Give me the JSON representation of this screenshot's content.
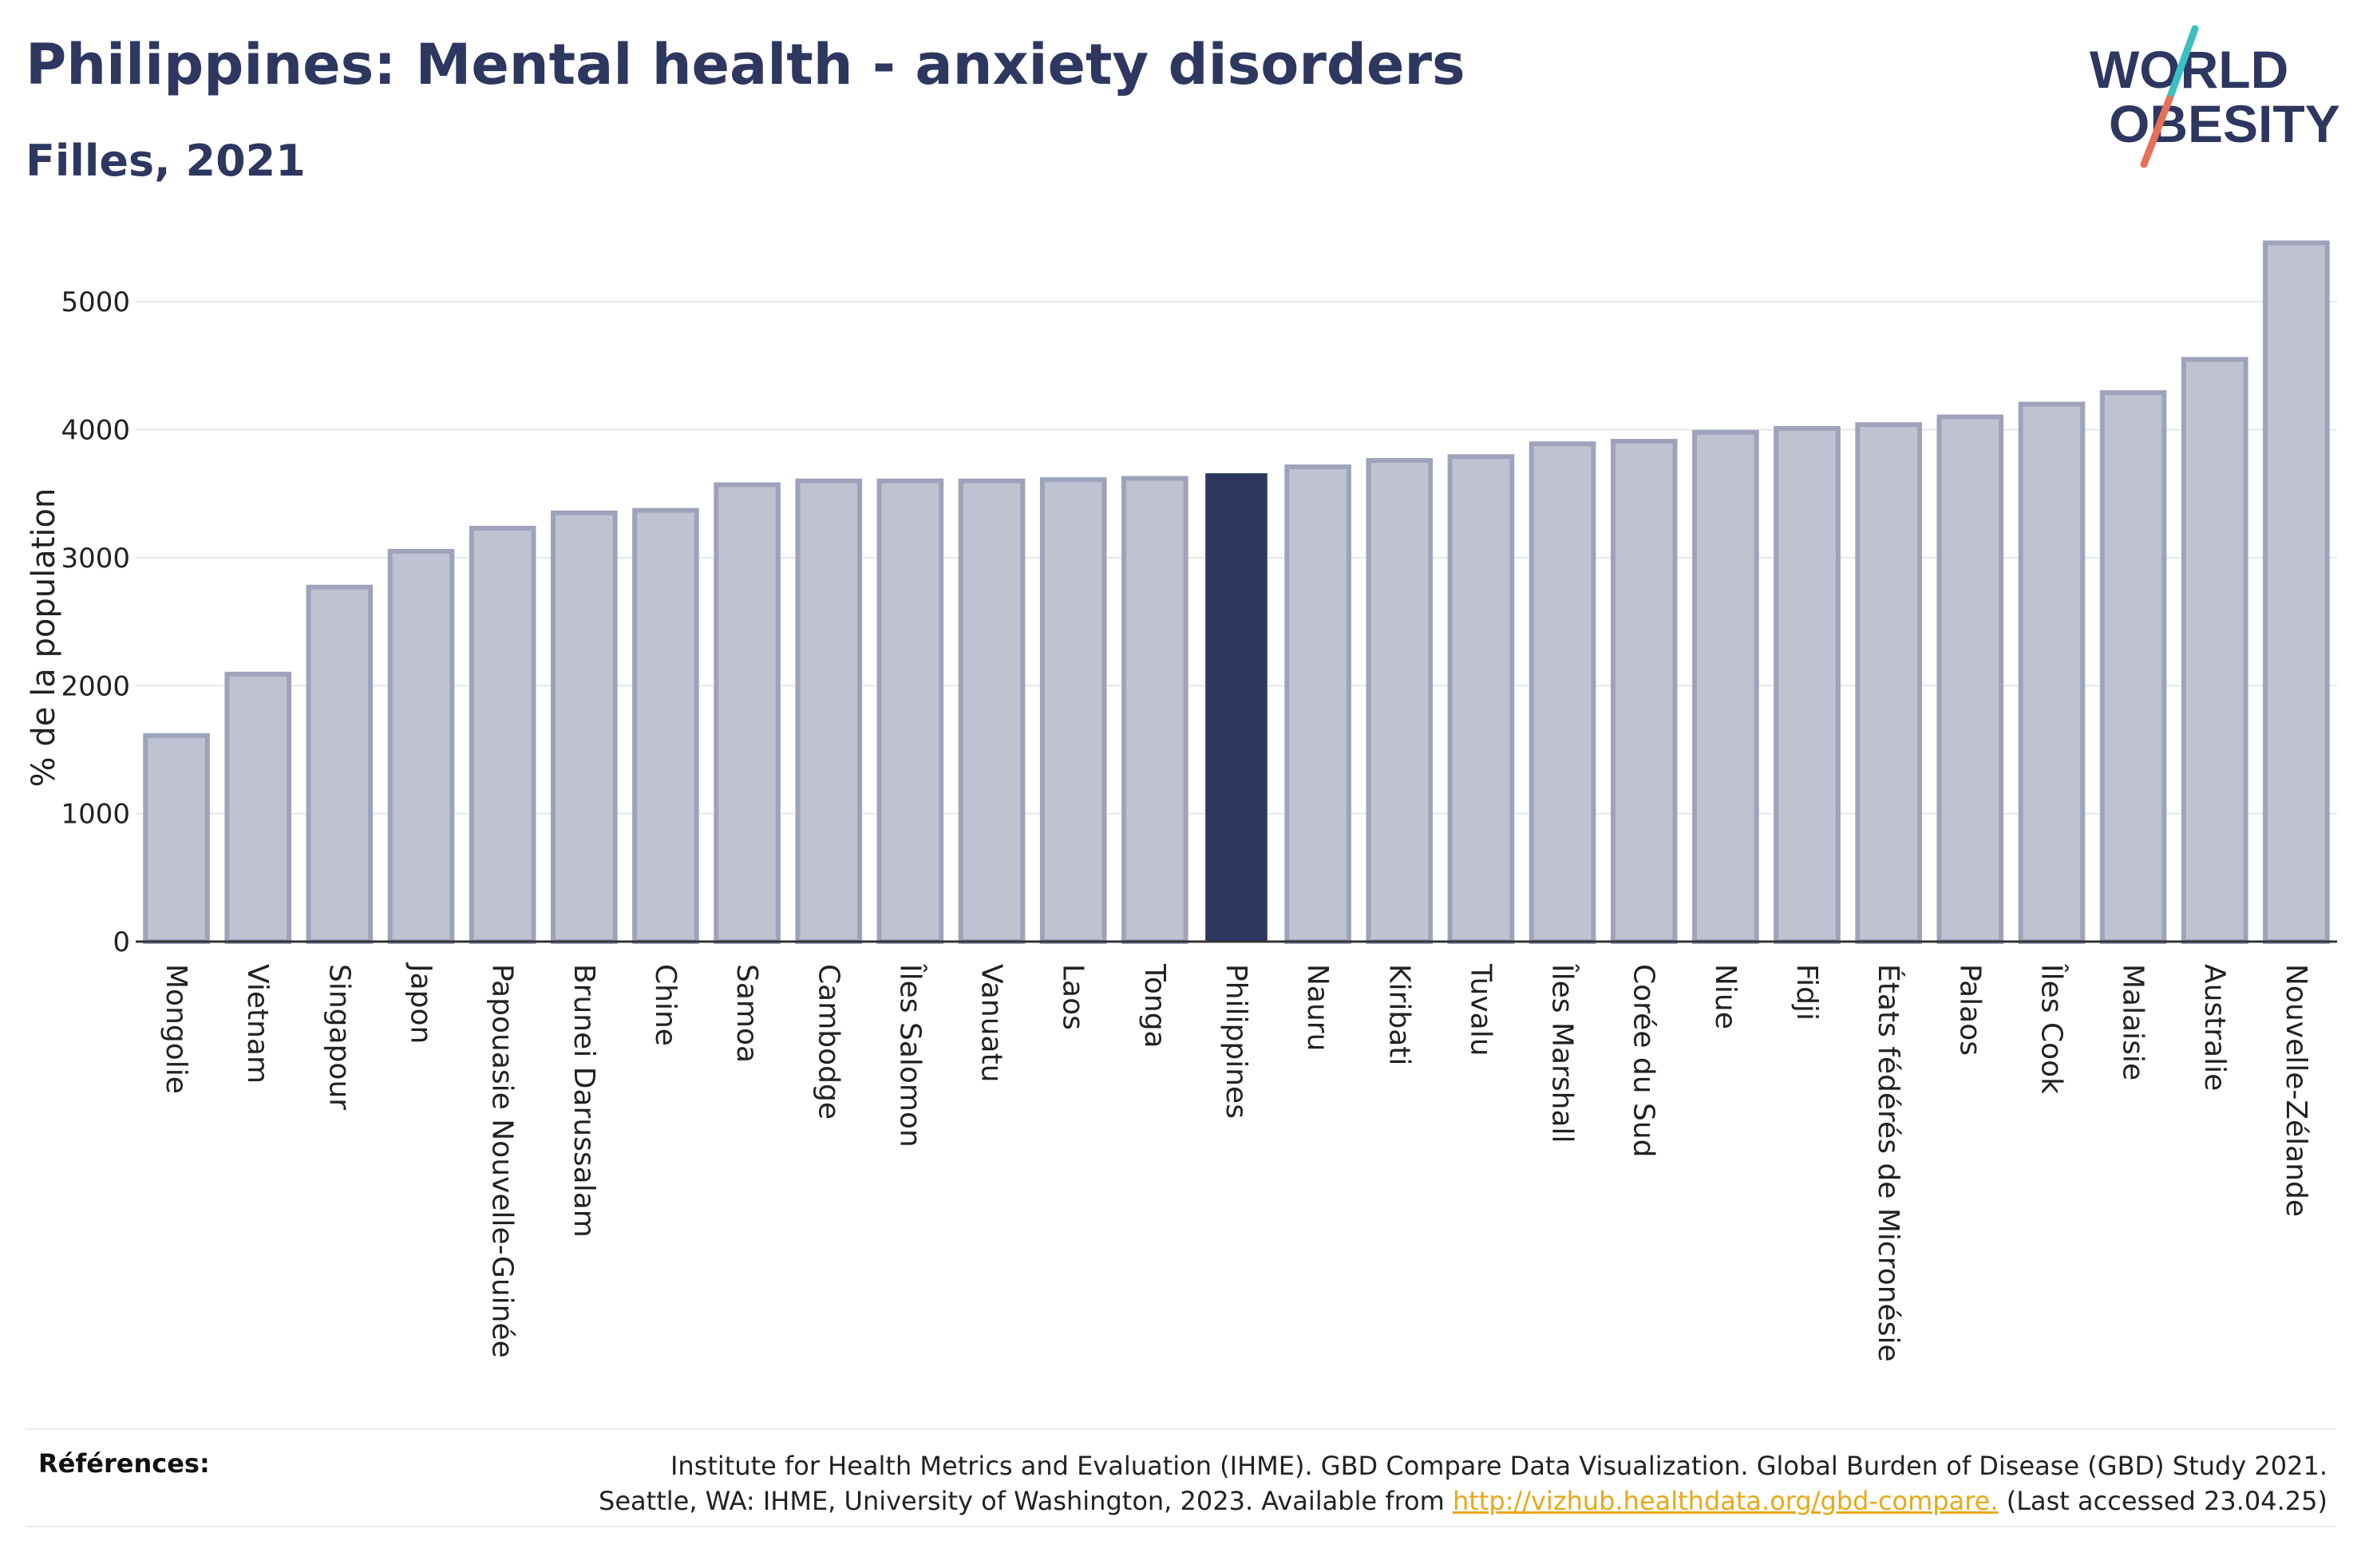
{
  "header": {
    "title": "Philippines: Mental health - anxiety disorders",
    "subtitle": "Filles, 2021"
  },
  "logo": {
    "line1": "WORLD",
    "line2": "OBESITY",
    "colors": {
      "text": "#2d3760",
      "slash_teal": "#3bbfc0",
      "slash_coral": "#e8705a"
    }
  },
  "colors": {
    "bar_default": "#bfc2d0",
    "bar_stroke": "#9ea3bb",
    "bar_highlight": "#2d3760",
    "grid": "#e6e7ec",
    "axis": "#333333"
  },
  "chart_data": {
    "type": "bar",
    "ylabel": "% de la population",
    "ylim": [
      0,
      5500
    ],
    "yticks": [
      0,
      1000,
      2000,
      3000,
      4000,
      5000
    ],
    "grid": true,
    "highlight": "Philippines",
    "categories": [
      "Mongolie",
      "Vietnam",
      "Singapour",
      "Japon",
      "Papouasie Nouvelle-Guinée",
      "Brunei Darussalam",
      "Chine",
      "Samoa",
      "Cambodge",
      "Îles Salomon",
      "Vanuatu",
      "Laos",
      "Tonga",
      "Philippines",
      "Nauru",
      "Kiribati",
      "Tuvalu",
      "Îles Marshall",
      "Corée du Sud",
      "Niue",
      "Fidji",
      "États fédérés de Micronésie",
      "Palaos",
      "Îles Cook",
      "Malaisie",
      "Australie",
      "Nouvelle-Zélande"
    ],
    "values": [
      1610,
      2090,
      2770,
      3050,
      3230,
      3350,
      3370,
      3570,
      3600,
      3600,
      3600,
      3610,
      3620,
      3660,
      3710,
      3760,
      3790,
      3890,
      3910,
      3980,
      4010,
      4040,
      4100,
      4200,
      4290,
      4550,
      5460
    ]
  },
  "references": {
    "label": "Références:",
    "line1": "Institute for Health Metrics and Evaluation (IHME). GBD Compare Data Visualization. Global Burden of Disease (GBD) Study 2021.",
    "line2_prefix": "Seattle, WA: IHME, University of Washington, 2023. Available from ",
    "link": "http://vizhub.healthdata.org/gbd-compare.",
    "line2_suffix": " (Last accessed 23.04.25)"
  }
}
